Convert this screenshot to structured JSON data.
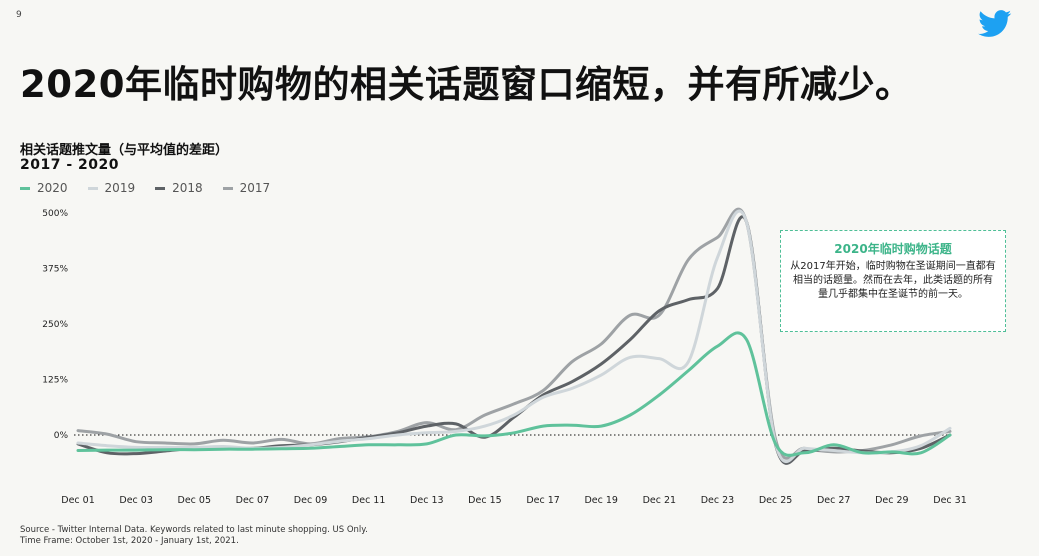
{
  "page_number": "9",
  "title": "2020年临时购物的相关话题窗口缩短，并有所减少。",
  "callout": {
    "title": "2020年临时购物话题",
    "body": "从2017年开始，临时购物在圣诞期间一直都有相当的话题量。然而在去年，此类话题的所有量几乎都集中在圣诞节的前一天。"
  },
  "source_line": "Source - Twitter Internal Data. Keywords related to last minute shopping. US Only.",
  "timeframe_line": "Time Frame: October 1st, 2020 - January 1st, 2021.",
  "colors": {
    "s2020": "#5fc29b",
    "s2019": "#cfd6da",
    "s2018": "#5e6266",
    "s2017": "#9ea2a5",
    "twitter": "#1da1f2"
  },
  "icons": {
    "logo": "twitter-bird-icon"
  },
  "chart_data": {
    "type": "line",
    "title": "相关话题推文量（与平均值的差距）",
    "subtitle": "2017 - 2020",
    "ylim": [
      -75,
      500
    ],
    "yticks": [
      0,
      125,
      250,
      375,
      500
    ],
    "ytick_labels": [
      "0%",
      "125%",
      "250%",
      "375%",
      "500%"
    ],
    "x": [
      "Dec 01",
      "Dec 02",
      "Dec 03",
      "Dec 04",
      "Dec 05",
      "Dec 06",
      "Dec 07",
      "Dec 08",
      "Dec 09",
      "Dec 10",
      "Dec 11",
      "Dec 12",
      "Dec 13",
      "Dec 14",
      "Dec 15",
      "Dec 16",
      "Dec 17",
      "Dec 18",
      "Dec 19",
      "Dec 20",
      "Dec 21",
      "Dec 22",
      "Dec 23",
      "Dec 24",
      "Dec 25",
      "Dec 26",
      "Dec 27",
      "Dec 28",
      "Dec 29",
      "Dec 30",
      "Dec 31"
    ],
    "xtick_labels": [
      "Dec 01",
      "Dec 03",
      "Dec 05",
      "Dec 07",
      "Dec 09",
      "Dec 11",
      "Dec 13",
      "Dec 15",
      "Dec 17",
      "Dec 19",
      "Dec 21",
      "Dec 23",
      "Dec 25",
      "Dec 27",
      "Dec 29",
      "Dec 31"
    ],
    "legend_position": "top-left",
    "reference_line": 0,
    "series": [
      {
        "name": "2017",
        "color": "#9ea2a5",
        "values": [
          10,
          2,
          -15,
          -18,
          -20,
          -12,
          -18,
          -10,
          -20,
          -8,
          -4,
          8,
          28,
          12,
          45,
          70,
          100,
          165,
          205,
          270,
          270,
          395,
          445,
          480,
          -10,
          -30,
          -38,
          -35,
          -22,
          -2,
          8
        ]
      },
      {
        "name": "2018",
        "color": "#5e6266",
        "values": [
          -20,
          -40,
          -42,
          -36,
          -30,
          -28,
          -30,
          -24,
          -22,
          -15,
          -5,
          5,
          20,
          25,
          -5,
          40,
          90,
          120,
          160,
          215,
          280,
          305,
          330,
          480,
          -22,
          -36,
          -30,
          -36,
          -40,
          -30,
          0
        ]
      },
      {
        "name": "2019",
        "color": "#cfd6da",
        "values": [
          -18,
          -24,
          -28,
          -28,
          -28,
          -26,
          -30,
          -28,
          -22,
          -14,
          -8,
          0,
          5,
          8,
          20,
          45,
          85,
          105,
          135,
          175,
          172,
          165,
          400,
          480,
          -20,
          -30,
          -35,
          -40,
          -38,
          -24,
          15
        ]
      },
      {
        "name": "2020",
        "color": "#5fc29b",
        "values": [
          -35,
          -34,
          -34,
          -33,
          -33,
          -32,
          -32,
          -31,
          -30,
          -26,
          -22,
          -22,
          -20,
          0,
          -2,
          5,
          20,
          22,
          20,
          45,
          90,
          145,
          200,
          215,
          -20,
          -40,
          -22,
          -40,
          -38,
          -40,
          0
        ]
      }
    ]
  }
}
